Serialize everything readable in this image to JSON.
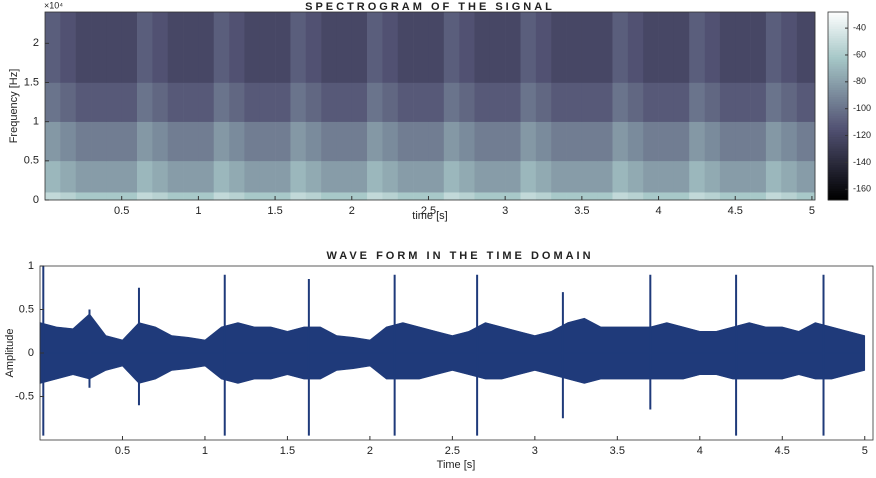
{
  "chart_data": [
    {
      "type": "heatmap",
      "title": "SPECTROGRAM OF THE SIGNAL",
      "xlabel": "time [s]",
      "ylabel": "Frequency [Hz]",
      "y_exponent_label": "×10⁴",
      "xlim": [
        0,
        5.02
      ],
      "xticks": [
        0.5,
        1,
        1.5,
        2,
        2.5,
        3,
        3.5,
        4,
        4.5,
        5
      ],
      "ylim": [
        0,
        2.4
      ],
      "yticks": [
        0,
        0.5,
        1,
        1.5,
        2
      ],
      "colormap": "bone",
      "clim": [
        -168,
        -28
      ],
      "colorbar_ticks": [
        -40,
        -60,
        -80,
        -100,
        -120,
        -140,
        -160
      ],
      "x_edges": [
        0,
        0.1,
        0.2,
        0.3,
        0.4,
        0.5,
        0.6,
        0.7,
        0.8,
        0.9,
        1,
        1.1,
        1.2,
        1.3,
        1.4,
        1.5,
        1.6,
        1.7,
        1.8,
        1.9,
        2,
        2.1,
        2.2,
        2.3,
        2.4,
        2.5,
        2.6,
        2.7,
        2.8,
        2.9,
        3,
        3.1,
        3.2,
        3.3,
        3.4,
        3.5,
        3.6,
        3.7,
        3.8,
        3.9,
        4,
        4.1,
        4.2,
        4.3,
        4.4,
        4.5,
        4.6,
        4.7,
        4.8,
        4.9,
        5,
        5.02
      ],
      "y_edges": [
        0,
        0.1,
        0.5,
        1.0,
        1.5,
        2.4
      ],
      "values": [
        [
          -52,
          -56,
          -62,
          -62,
          -62,
          -62,
          -52,
          -56,
          -62,
          -62,
          -62,
          -52,
          -56,
          -62,
          -62,
          -62,
          -52,
          -56,
          -62,
          -62,
          -62,
          -52,
          -56,
          -62,
          -62,
          -62,
          -52,
          -56,
          -62,
          -62,
          -62,
          -52,
          -56,
          -62,
          -62,
          -62,
          -62,
          -52,
          -56,
          -62,
          -62,
          -62,
          -52,
          -56,
          -62,
          -62,
          -62,
          -52,
          -56,
          -62,
          -62
        ],
        [
          -70,
          -76,
          -82,
          -82,
          -82,
          -82,
          -70,
          -76,
          -82,
          -82,
          -82,
          -70,
          -76,
          -82,
          -82,
          -82,
          -70,
          -76,
          -82,
          -82,
          -82,
          -70,
          -76,
          -82,
          -82,
          -82,
          -70,
          -76,
          -82,
          -82,
          -82,
          -70,
          -76,
          -82,
          -82,
          -82,
          -82,
          -70,
          -76,
          -82,
          -82,
          -82,
          -70,
          -76,
          -82,
          -82,
          -82,
          -70,
          -76,
          -82,
          -82
        ],
        [
          -84,
          -90,
          -96,
          -96,
          -96,
          -96,
          -84,
          -90,
          -96,
          -96,
          -96,
          -84,
          -90,
          -96,
          -96,
          -96,
          -84,
          -90,
          -96,
          -96,
          -96,
          -84,
          -90,
          -96,
          -96,
          -96,
          -84,
          -90,
          -96,
          -96,
          -96,
          -84,
          -90,
          -96,
          -96,
          -96,
          -96,
          -84,
          -90,
          -96,
          -96,
          -96,
          -84,
          -90,
          -96,
          -96,
          -96,
          -84,
          -90,
          -96,
          -96
        ],
        [
          -100,
          -106,
          -112,
          -112,
          -112,
          -112,
          -100,
          -106,
          -112,
          -112,
          -112,
          -100,
          -106,
          -112,
          -112,
          -112,
          -100,
          -106,
          -112,
          -112,
          -112,
          -100,
          -106,
          -112,
          -112,
          -112,
          -100,
          -106,
          -112,
          -112,
          -112,
          -100,
          -106,
          -112,
          -112,
          -112,
          -112,
          -100,
          -106,
          -112,
          -112,
          -112,
          -100,
          -106,
          -112,
          -112,
          -112,
          -100,
          -106,
          -112,
          -112
        ],
        [
          -110,
          -116,
          -122,
          -122,
          -122,
          -122,
          -110,
          -116,
          -122,
          -122,
          -122,
          -110,
          -116,
          -122,
          -122,
          -122,
          -110,
          -116,
          -122,
          -122,
          -122,
          -110,
          -116,
          -122,
          -122,
          -122,
          -110,
          -116,
          -122,
          -122,
          -122,
          -110,
          -116,
          -122,
          -122,
          -122,
          -122,
          -110,
          -116,
          -122,
          -122,
          -122,
          -110,
          -116,
          -122,
          -122,
          -122,
          -110,
          -116,
          -122,
          -122
        ]
      ]
    },
    {
      "type": "envelope",
      "title": "WAVE FORM IN THE TIME DOMAIN",
      "xlabel": "Time [s]",
      "ylabel": "Amplitude",
      "xlim": [
        0,
        5.05
      ],
      "xticks": [
        0.5,
        1,
        1.5,
        2,
        2.5,
        3,
        3.5,
        4,
        4.5,
        5
      ],
      "ylim": [
        -1,
        1
      ],
      "yticks": [
        -0.5,
        0,
        0.5,
        1
      ],
      "x": [
        0,
        0.1,
        0.2,
        0.3,
        0.4,
        0.5,
        0.6,
        0.7,
        0.8,
        0.9,
        1,
        1.1,
        1.2,
        1.3,
        1.4,
        1.5,
        1.6,
        1.7,
        1.8,
        1.9,
        2,
        2.1,
        2.2,
        2.3,
        2.4,
        2.5,
        2.6,
        2.7,
        2.8,
        2.9,
        3,
        3.1,
        3.2,
        3.3,
        3.4,
        3.5,
        3.6,
        3.7,
        3.8,
        3.9,
        4,
        4.1,
        4.2,
        4.3,
        4.4,
        4.5,
        4.6,
        4.7,
        4.8,
        4.9,
        5
      ],
      "series": [
        {
          "color": "#1f3a7a",
          "values": [
            0.35,
            0.3,
            0.28,
            0.45,
            0.2,
            0.15,
            0.35,
            0.3,
            0.2,
            0.18,
            0.15,
            0.3,
            0.35,
            0.3,
            0.3,
            0.25,
            0.3,
            0.3,
            0.2,
            0.18,
            0.15,
            0.3,
            0.35,
            0.3,
            0.25,
            0.2,
            0.25,
            0.35,
            0.3,
            0.25,
            0.2,
            0.25,
            0.35,
            0.4,
            0.3,
            0.3,
            0.3,
            0.3,
            0.35,
            0.3,
            0.25,
            0.25,
            0.3,
            0.35,
            0.3,
            0.3,
            0.25,
            0.35,
            0.3,
            0.25,
            0.2
          ]
        },
        {
          "color": "#1f3a7a",
          "values": [
            -0.35,
            -0.3,
            -0.25,
            -0.3,
            -0.2,
            -0.15,
            -0.35,
            -0.3,
            -0.2,
            -0.18,
            -0.15,
            -0.3,
            -0.35,
            -0.3,
            -0.3,
            -0.25,
            -0.3,
            -0.3,
            -0.2,
            -0.18,
            -0.15,
            -0.3,
            -0.3,
            -0.3,
            -0.25,
            -0.2,
            -0.25,
            -0.3,
            -0.3,
            -0.25,
            -0.2,
            -0.25,
            -0.3,
            -0.35,
            -0.3,
            -0.3,
            -0.3,
            -0.3,
            -0.3,
            -0.3,
            -0.25,
            -0.25,
            -0.3,
            -0.3,
            -0.3,
            -0.3,
            -0.25,
            -0.3,
            -0.3,
            -0.25,
            -0.2
          ]
        }
      ],
      "spikes": {
        "color": "#1f3a7a",
        "x": [
          0.02,
          0.3,
          0.6,
          1.12,
          1.63,
          2.15,
          2.65,
          3.17,
          3.7,
          4.22,
          4.75
        ],
        "high": [
          1.0,
          0.5,
          0.75,
          0.9,
          0.85,
          0.9,
          0.9,
          0.7,
          0.9,
          0.9,
          0.9
        ],
        "low": [
          -0.95,
          -0.4,
          -0.6,
          -0.95,
          -0.95,
          -0.95,
          -0.95,
          -0.75,
          -0.65,
          -0.95,
          -0.95
        ]
      }
    }
  ]
}
